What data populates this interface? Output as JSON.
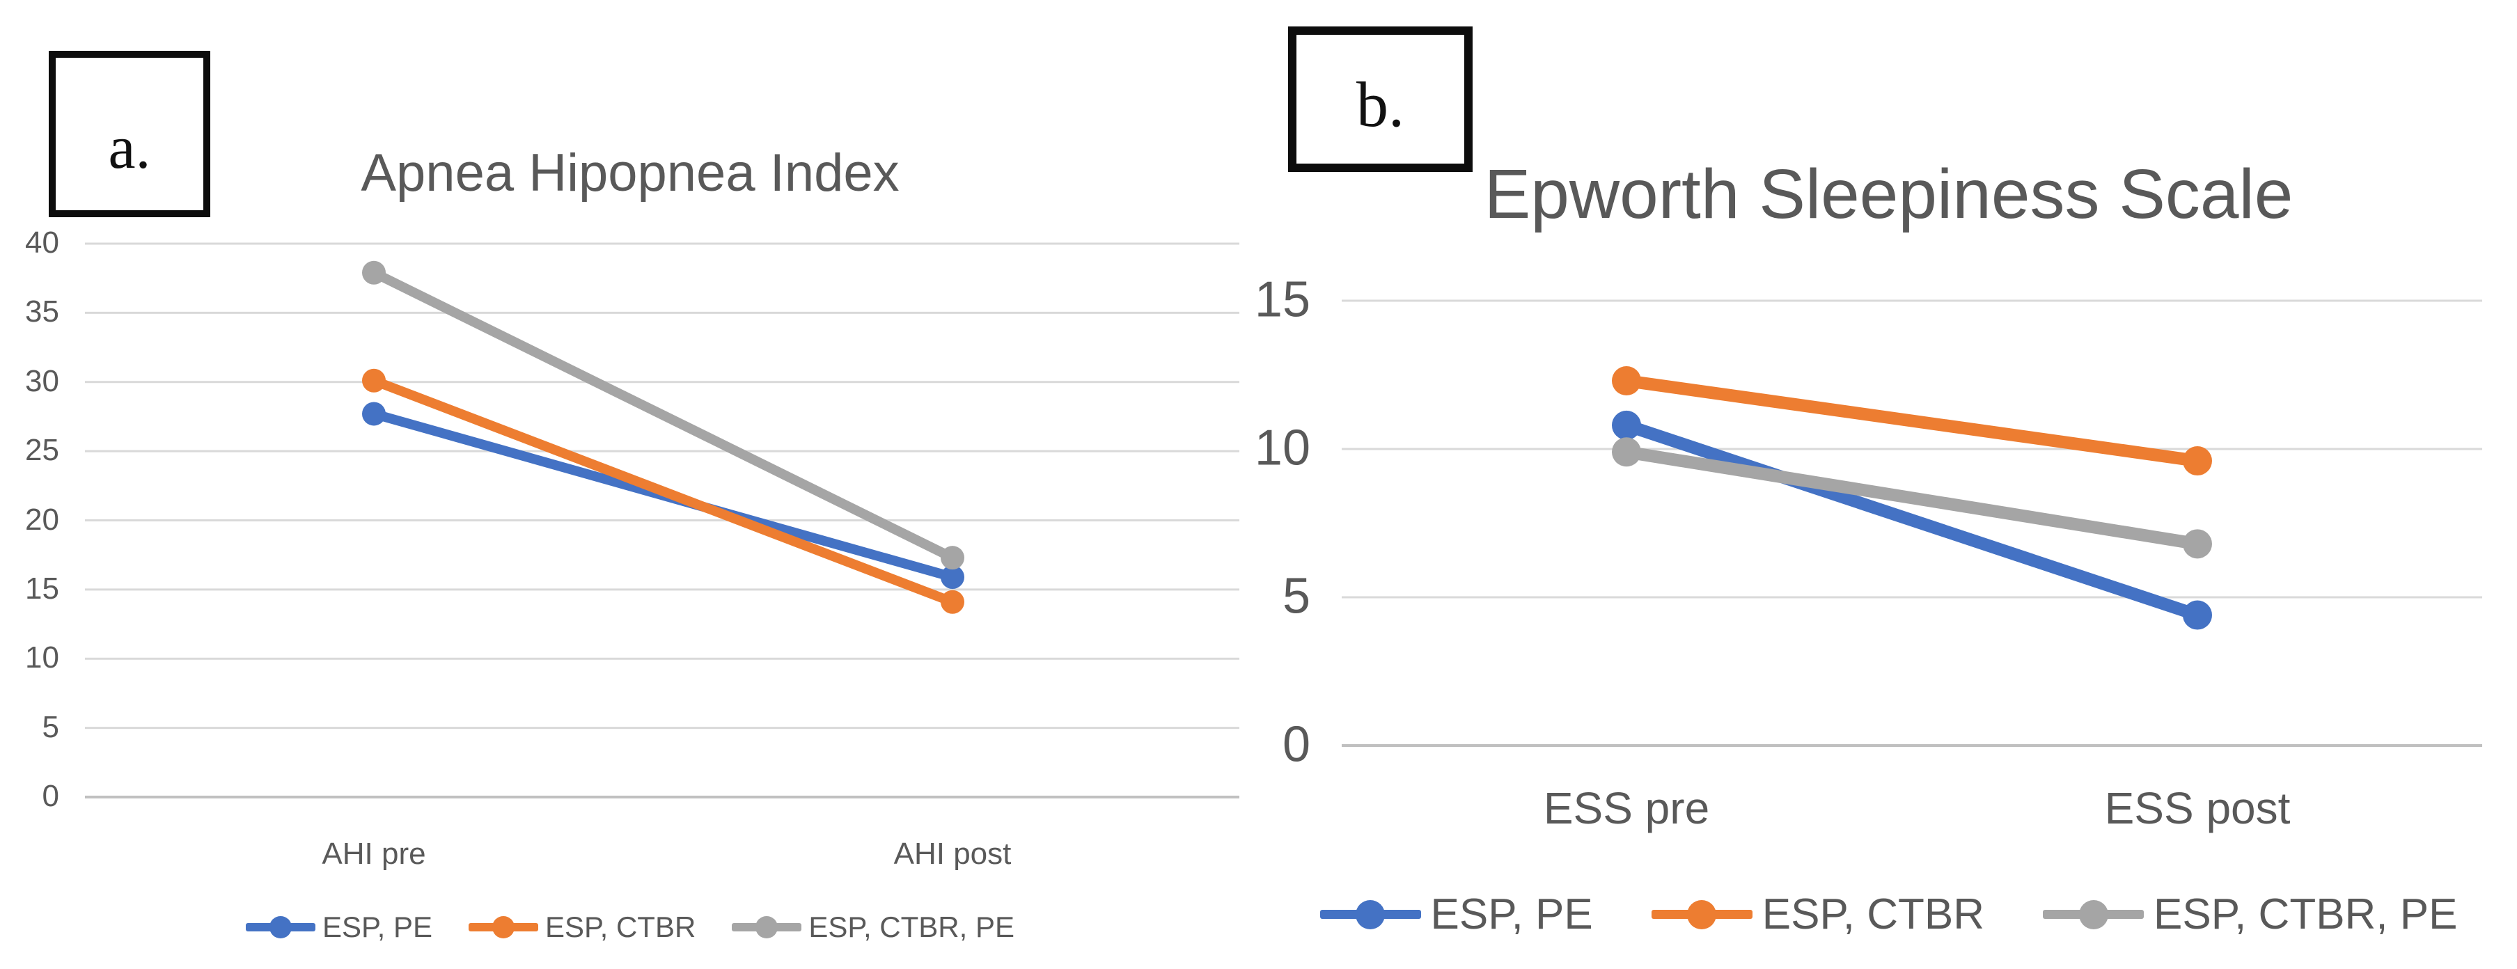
{
  "figure": {
    "background": "#ffffff",
    "text_color": "#595959",
    "gridline_color": "#d9d9d9",
    "axis_line_color": "#c0c0c0",
    "panel_labels": [
      "a.",
      "b."
    ]
  },
  "chart_data": [
    {
      "id": "ahi",
      "type": "line",
      "panel_label": "a.",
      "title": "Apnea Hipopnea Index",
      "categories": [
        "AHI pre",
        "AHI post"
      ],
      "series": [
        {
          "name": "ESP, PE",
          "color": "#4472C4",
          "values": [
            27.7,
            15.9
          ]
        },
        {
          "name": "ESP, CTBR",
          "color": "#ED7D31",
          "values": [
            30.1,
            14.1
          ]
        },
        {
          "name": "ESP, CTBR, PE",
          "color": "#A5A5A5",
          "values": [
            37.9,
            17.3
          ]
        }
      ],
      "yticks": [
        0,
        5,
        10,
        15,
        20,
        25,
        30,
        35,
        40
      ],
      "ylim": [
        0,
        40
      ],
      "xlabel": "",
      "ylabel": "",
      "grid": true,
      "legend_position": "bottom"
    },
    {
      "id": "ess",
      "type": "line",
      "panel_label": "b.",
      "title": "Epworth Sleepiness Scale",
      "categories": [
        "ESS pre",
        "ESS post"
      ],
      "series": [
        {
          "name": "ESP, PE",
          "color": "#4472C4",
          "values": [
            10.8,
            4.4
          ]
        },
        {
          "name": "ESP, CTBR",
          "color": "#ED7D31",
          "values": [
            12.3,
            9.6
          ]
        },
        {
          "name": "ESP, CTBR, PE",
          "color": "#A5A5A5",
          "values": [
            9.9,
            6.8
          ]
        }
      ],
      "yticks": [
        0,
        5,
        10,
        15
      ],
      "ylim": [
        0,
        15
      ],
      "xlabel": "",
      "ylabel": "",
      "grid": true,
      "legend_position": "bottom"
    }
  ]
}
